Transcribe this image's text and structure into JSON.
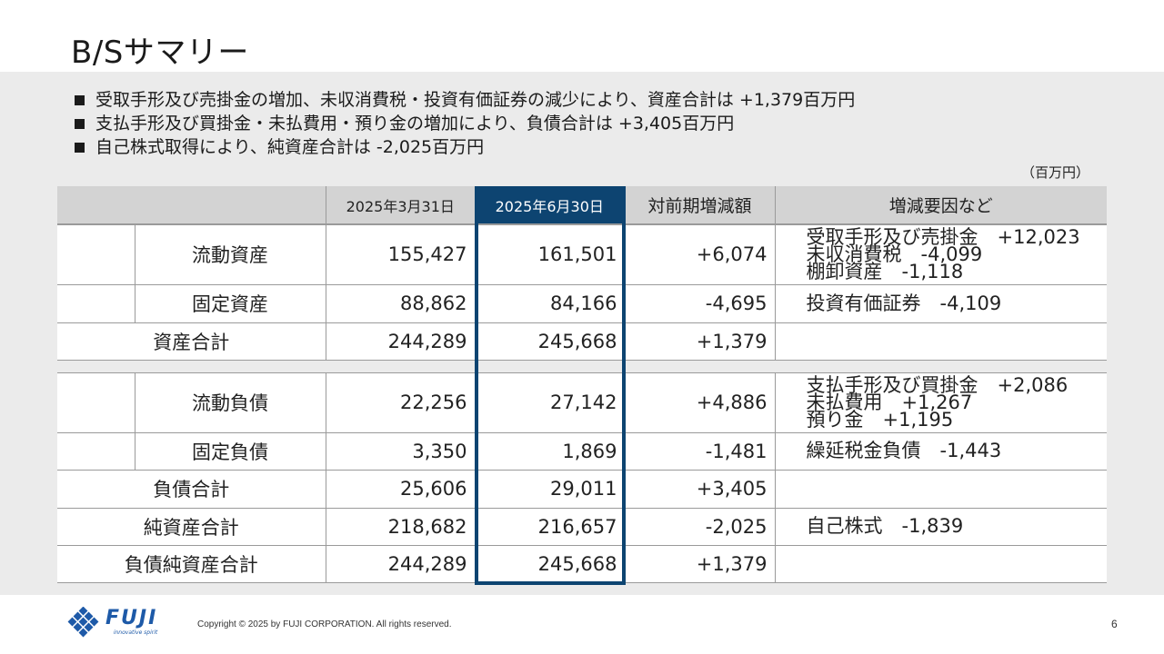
{
  "title": "B/Sサマリー",
  "bullets": [
    "受取手形及び売掛金の増加、未収消費税・投資有価証券の減少により、資産合計は +1,379百万円",
    "支払手形及び買掛金・未払費用・預り金の増加により、負債合計は +3,405百万円",
    "自己株式取得により、純資産合計は -2,025百万円"
  ],
  "unit_note": "（百万円）",
  "table": {
    "headers": [
      "",
      "2025年3月31日",
      "2025年6月30日",
      "対前期増減額",
      "増減要因など"
    ],
    "rows": {
      "current_assets": {
        "label": "流動資産",
        "prev": "155,427",
        "curr": "161,501",
        "diff": "+6,074",
        "reasons": [
          "受取手形及び売掛金　+12,023",
          "未収消費税　-4,099",
          "棚卸資産　-1,118"
        ]
      },
      "fixed_assets": {
        "label": "固定資産",
        "prev": "88,862",
        "curr": "84,166",
        "diff": "-4,695",
        "reasons": [
          "投資有価証券　-4,109"
        ]
      },
      "total_assets": {
        "label": "資産合計",
        "prev": "244,289",
        "curr": "245,668",
        "diff": "+1,379",
        "reasons": []
      },
      "current_liabilities": {
        "label": "流動負債",
        "prev": "22,256",
        "curr": "27,142",
        "diff": "+4,886",
        "reasons": [
          "支払手形及び買掛金　+2,086",
          "未払費用　+1,267",
          "預り金　+1,195"
        ]
      },
      "fixed_liabilities": {
        "label": "固定負債",
        "prev": "3,350",
        "curr": "1,869",
        "diff": "-1,481",
        "reasons": [
          "繰延税金負債　-1,443"
        ]
      },
      "total_liabilities": {
        "label": "負債合計",
        "prev": "25,606",
        "curr": "29,011",
        "diff": "+3,405",
        "reasons": []
      },
      "net_assets": {
        "label": "純資産合計",
        "prev": "218,682",
        "curr": "216,657",
        "diff": "-2,025",
        "reasons": [
          "自己株式　-1,839"
        ]
      },
      "total_liab_net": {
        "label": "負債純資産合計",
        "prev": "244,289",
        "curr": "245,668",
        "diff": "+1,379",
        "reasons": []
      }
    }
  },
  "footer": {
    "logo_word": "FUJI",
    "logo_tagline": "innovative spirit",
    "copyright": "Copyright © 2025 by FUJI CORPORATION. All rights reserved.",
    "page_number": "6"
  },
  "colors": {
    "emphasis_header": "#0d4471",
    "emphasis_cell": "#e4e9ee",
    "emphasis_total": "#bfdaf0",
    "background": "#ebebeb",
    "logo": "#1e5aa8"
  }
}
